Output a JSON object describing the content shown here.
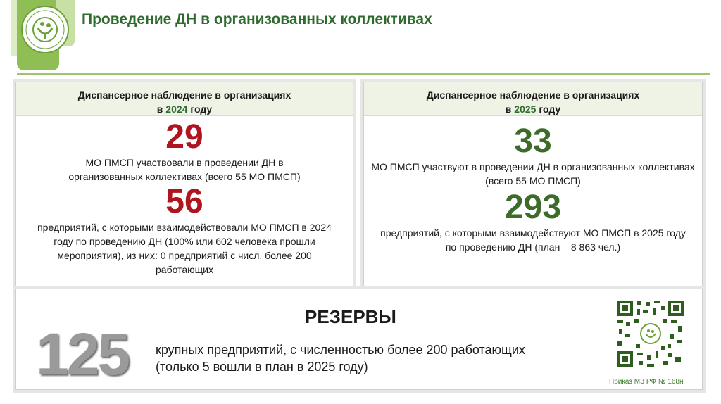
{
  "header": {
    "title": "Проведение ДН в организованных коллективах",
    "logo_icon": "ministry-logo-icon"
  },
  "panel_2024": {
    "heading_line1": "Диспансерное наблюдение в организациях",
    "heading_prefix": "в ",
    "heading_year": "2024",
    "heading_suffix": " году",
    "stat1_value": "29",
    "stat1_text": "МО ПМСП участвовали в проведении ДН в организованных коллективах (всего 55 МО ПМСП)",
    "stat2_value": "56",
    "stat2_text": "предприятий, с которыми взаимодействовали МО ПМСП в 2024 году по проведению ДН (100% или 602 человека прошли мероприятия), из них: 0 предприятий с числ. более 200 работающих"
  },
  "panel_2025": {
    "heading_line1": "Диспансерное наблюдение в организациях",
    "heading_prefix": "в ",
    "heading_year": "2025",
    "heading_suffix": " году",
    "stat1_value": "33",
    "stat1_text": "МО ПМСП участвуют в проведении ДН в организованных коллективах (всего 55 МО ПМСП)",
    "stat2_value": "293",
    "stat2_text": "предприятий, с которыми взаимодействуют МО ПМСП в 2025 году по проведению ДН (план – 8 863 чел.)"
  },
  "reserves": {
    "title": "РЕЗЕРВЫ",
    "value": "125",
    "text_line1": "крупных предприятий, с численностью более 200 работающих",
    "text_line2": "(только 5 вошли в план в 2025 году)",
    "qr_icon": "qr-code-icon",
    "order_note": "Приказ МЗ РФ № 168н"
  },
  "colors": {
    "accent_green": "#2f6b2f",
    "value_red": "#b0141e",
    "value_green": "#3d6b2a",
    "reserve_gray": "#9a9a9a"
  }
}
